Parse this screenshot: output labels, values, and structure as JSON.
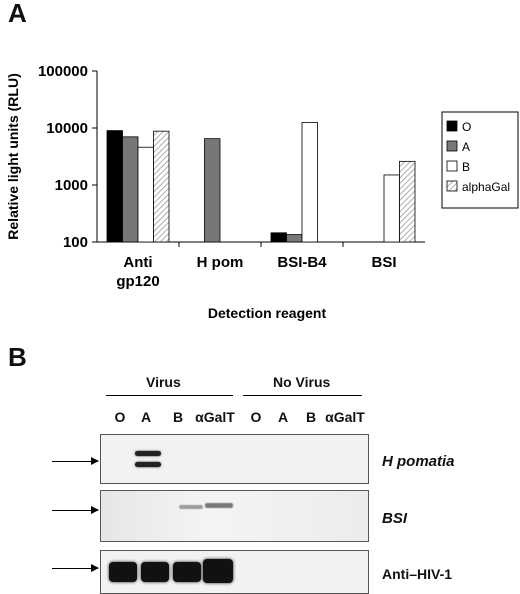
{
  "panel_a": {
    "letter": "A"
  },
  "panel_b": {
    "letter": "B",
    "groups": [
      "Virus",
      "No Virus"
    ],
    "lanes": [
      "O",
      "A",
      "B",
      "αGalT",
      "O",
      "A",
      "B",
      "αGalT"
    ],
    "blots": [
      {
        "label": "H pomatia",
        "band_lanes": [
          "A"
        ]
      },
      {
        "label": "BSI",
        "band_lanes": [
          "B",
          "αGalT"
        ]
      },
      {
        "label": "Anti–HIV-1",
        "band_lanes": [
          "O",
          "A",
          "B",
          "αGalT"
        ]
      }
    ]
  },
  "colors": {
    "O": "#000000",
    "A": "#777777",
    "B": "#ffffff",
    "alphaGal": "#e0e0e0"
  },
  "chart_data": {
    "type": "bar",
    "title": "",
    "xlabel": "Detection reagent",
    "ylabel": "Relative light units (RLU)",
    "yscale": "log",
    "ylim": [
      100,
      100000
    ],
    "yticks": [
      "100",
      "1000",
      "10000",
      "100000"
    ],
    "categories": [
      [
        "Anti",
        "gp120"
      ],
      [
        "H pom"
      ],
      [
        "BSI-B4"
      ],
      [
        "BSI"
      ]
    ],
    "legend_position": "right",
    "series": [
      {
        "name": "O",
        "values": [
          9000,
          null,
          145,
          null
        ]
      },
      {
        "name": "A",
        "values": [
          7000,
          6500,
          135,
          null
        ]
      },
      {
        "name": "B",
        "values": [
          4600,
          null,
          12500,
          1500
        ]
      },
      {
        "name": "alphaGal",
        "values": [
          8800,
          null,
          null,
          2600
        ]
      }
    ]
  }
}
